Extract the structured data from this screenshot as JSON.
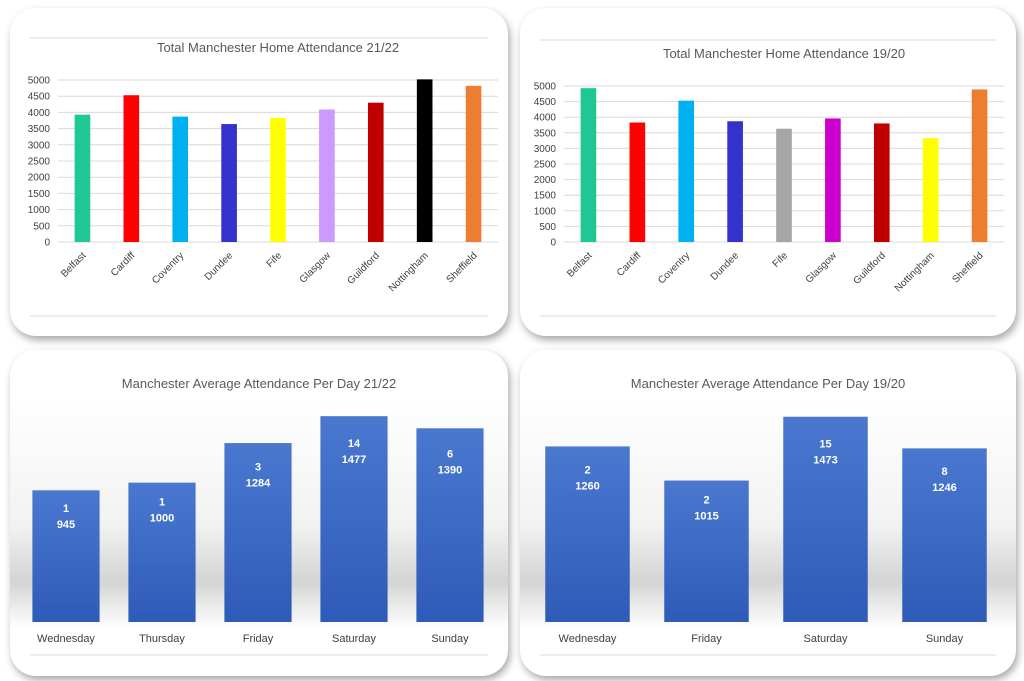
{
  "chart_data": [
    {
      "id": "c1",
      "type": "bar",
      "title": "Total Manchester Home Attendance 21/22",
      "categories": [
        "Belfast",
        "Cardiff",
        "Coventry",
        "Dundee",
        "Fife",
        "Glasgow",
        "Guildford",
        "Nottingham",
        "Sheffield"
      ],
      "values": [
        3930,
        4530,
        3870,
        3640,
        3830,
        4090,
        4300,
        5020,
        4820
      ],
      "colors": [
        "#1fc795",
        "#ff0000",
        "#00b0f0",
        "#3333cc",
        "#ffff00",
        "#cc99ff",
        "#c00000",
        "#000000",
        "#ed7d31"
      ],
      "yticks": [
        0,
        500,
        1000,
        1500,
        2000,
        2500,
        3000,
        3500,
        4000,
        4500,
        5000
      ],
      "ylim": [
        0,
        5000
      ],
      "grid": true
    },
    {
      "id": "c2",
      "type": "bar",
      "title": "Total Manchester Home Attendance 19/20",
      "categories": [
        "Belfast",
        "Cardiff",
        "Coventry",
        "Dundee",
        "Fife",
        "Glasgow",
        "Guildford",
        "Nottingham",
        "Sheffield"
      ],
      "values": [
        4930,
        3830,
        4530,
        3870,
        3630,
        3960,
        3800,
        3330,
        4890
      ],
      "colors": [
        "#1fc795",
        "#ff0000",
        "#00b0f0",
        "#3333cc",
        "#a6a6a6",
        "#cc00cc",
        "#c00000",
        "#ffff00",
        "#ed7d31"
      ],
      "yticks": [
        0,
        500,
        1000,
        1500,
        2000,
        2500,
        3000,
        3500,
        4000,
        4500,
        5000
      ],
      "ylim": [
        0,
        5000
      ],
      "grid": true
    },
    {
      "id": "c3",
      "type": "bar",
      "title": "Manchester Average Attendance Per Day 21/22",
      "categories": [
        "Wednesday",
        "Thursday",
        "Friday",
        "Saturday",
        "Sunday"
      ],
      "games": [
        "1",
        "1",
        "3",
        "14",
        "6"
      ],
      "values": [
        945,
        1000,
        1284,
        1477,
        1390
      ],
      "labels": [
        "945",
        "1000",
        "1284",
        "1477",
        "1390"
      ],
      "ylim": [
        0,
        1550
      ],
      "grid": false
    },
    {
      "id": "c4",
      "type": "bar",
      "title": "Manchester Average Attendance Per Day 19/20",
      "categories": [
        "Wednesday",
        "Friday",
        "Saturday",
        "Sunday"
      ],
      "games": [
        "2",
        "2",
        "15",
        "8"
      ],
      "values": [
        1260,
        1015,
        1473,
        1246
      ],
      "labels": [
        "1260",
        "1015",
        "1473",
        "1246"
      ],
      "ylim": [
        0,
        1550
      ],
      "grid": false
    }
  ]
}
